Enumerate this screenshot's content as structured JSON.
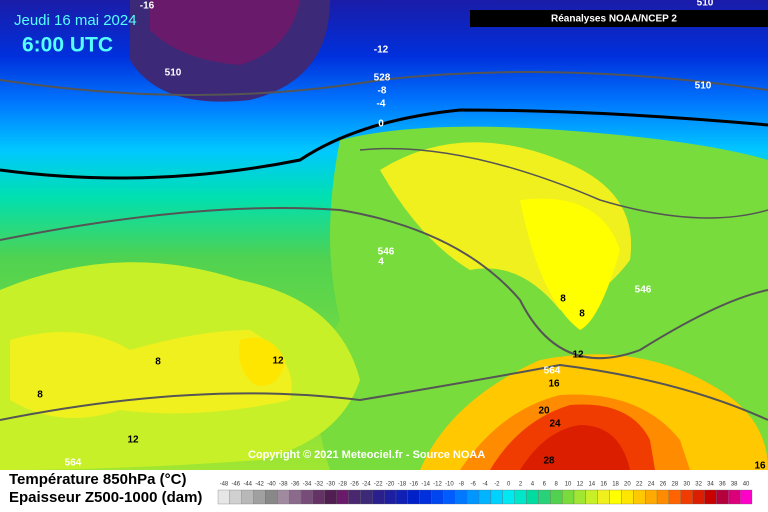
{
  "header": {
    "date": "Jeudi 16 mai 2024",
    "time": "6:00 UTC",
    "source_box": "Réanalyses NOAA/NCEP 2",
    "copyright": "Copyright © 2021 Meteociel.fr - Source NOAA"
  },
  "legend": {
    "title_temperature": "Température 850hPa (°C)",
    "title_thickness": "Epaisseur Z500-1000 (dam)",
    "items": [
      {
        "label": "-48",
        "color": "#e6e6e6"
      },
      {
        "label": "-46",
        "color": "#d0d0d0"
      },
      {
        "label": "-44",
        "color": "#b8b8b8"
      },
      {
        "label": "-42",
        "color": "#a0a0a0"
      },
      {
        "label": "-40",
        "color": "#888888"
      },
      {
        "label": "-38",
        "color": "#a08aa0"
      },
      {
        "label": "-36",
        "color": "#8c6a8c"
      },
      {
        "label": "-34",
        "color": "#784c78"
      },
      {
        "label": "-32",
        "color": "#643264"
      },
      {
        "label": "-30",
        "color": "#501e50"
      },
      {
        "label": "-28",
        "color": "#6a1a6a"
      },
      {
        "label": "-26",
        "color": "#4a2870"
      },
      {
        "label": "-24",
        "color": "#3c2a78"
      },
      {
        "label": "-22",
        "color": "#2a1f8c"
      },
      {
        "label": "-20",
        "color": "#1e1ea0"
      },
      {
        "label": "-18",
        "color": "#1020b4"
      },
      {
        "label": "-16",
        "color": "#0020c8"
      },
      {
        "label": "-14",
        "color": "#0030dc"
      },
      {
        "label": "-12",
        "color": "#0046f0"
      },
      {
        "label": "-10",
        "color": "#005cff"
      },
      {
        "label": "-8",
        "color": "#0078ff"
      },
      {
        "label": "-6",
        "color": "#0096ff"
      },
      {
        "label": "-4",
        "color": "#00b4ff"
      },
      {
        "label": "-2",
        "color": "#00d2ff"
      },
      {
        "label": "0",
        "color": "#00e8f0"
      },
      {
        "label": "2",
        "color": "#00e6c8"
      },
      {
        "label": "4",
        "color": "#00dca0"
      },
      {
        "label": "6",
        "color": "#28d278"
      },
      {
        "label": "8",
        "color": "#50d250"
      },
      {
        "label": "10",
        "color": "#78dc3c"
      },
      {
        "label": "12",
        "color": "#a0e632"
      },
      {
        "label": "14",
        "color": "#c8f028"
      },
      {
        "label": "16",
        "color": "#f0f01e"
      },
      {
        "label": "18",
        "color": "#ffff00"
      },
      {
        "label": "20",
        "color": "#ffe600"
      },
      {
        "label": "22",
        "color": "#ffc800"
      },
      {
        "label": "24",
        "color": "#ffaa00"
      },
      {
        "label": "26",
        "color": "#ff8c00"
      },
      {
        "label": "28",
        "color": "#ff6400"
      },
      {
        "label": "30",
        "color": "#f03c00"
      },
      {
        "label": "32",
        "color": "#dc1e00"
      },
      {
        "label": "34",
        "color": "#c80000"
      },
      {
        "label": "36",
        "color": "#b4003c"
      },
      {
        "label": "38",
        "color": "#dc0078"
      },
      {
        "label": "40",
        "color": "#ff00c8"
      }
    ]
  },
  "contour_labels": [
    "-16",
    "-12",
    "528",
    "-8",
    "-4",
    "0",
    "510",
    "510",
    "510",
    "546",
    "4",
    "546",
    "8",
    "8",
    "12",
    "564",
    "16",
    "20",
    "24",
    "28",
    "12",
    "8",
    "8",
    "12",
    "564",
    "16"
  ]
}
